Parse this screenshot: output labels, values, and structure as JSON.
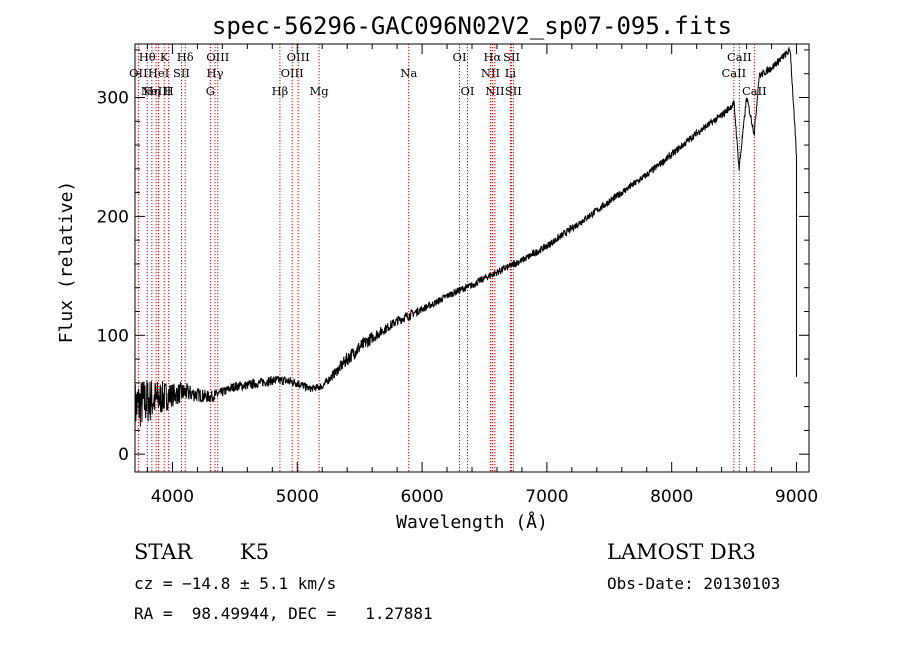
{
  "chart_data": {
    "type": "line",
    "title": "spec-56296-GAC096N02V2_sp07-095.fits",
    "xlabel": "Wavelength (Å)",
    "ylabel": "Flux (relative)",
    "xlim": [
      3700,
      9100
    ],
    "ylim": [
      -15,
      345
    ],
    "xticks": [
      4000,
      5000,
      6000,
      7000,
      8000,
      9000
    ],
    "yticks": [
      0,
      100,
      200,
      300
    ],
    "minor_xtick_step": 200,
    "minor_ytick_step": 20,
    "series": [
      {
        "name": "flux",
        "color": "#000000",
        "x": [
          3700,
          3800,
          3900,
          4000,
          4100,
          4200,
          4300,
          4400,
          4500,
          4600,
          4700,
          4800,
          4900,
          5000,
          5100,
          5200,
          5300,
          5400,
          5500,
          5600,
          5700,
          5800,
          5900,
          6000,
          6100,
          6200,
          6300,
          6400,
          6500,
          6600,
          6700,
          6800,
          7000,
          7200,
          7400,
          7600,
          7800,
          8000,
          8200,
          8400,
          8500,
          8540,
          8600,
          8662,
          8700,
          8800,
          8900,
          8950,
          9000
        ],
        "y": [
          40,
          45,
          47,
          50,
          52,
          50,
          48,
          52,
          57,
          58,
          60,
          62,
          62,
          60,
          55,
          57,
          68,
          80,
          90,
          98,
          105,
          112,
          117,
          122,
          127,
          133,
          138,
          142,
          148,
          153,
          158,
          163,
          175,
          190,
          205,
          220,
          235,
          252,
          270,
          285,
          295,
          240,
          300,
          270,
          318,
          325,
          335,
          340,
          250
        ],
        "noise": [
          22,
          20,
          15,
          10,
          8,
          6,
          5,
          4,
          4,
          4,
          4,
          4,
          4,
          4,
          3,
          3,
          4,
          6,
          6,
          5,
          4,
          4,
          4,
          3,
          3,
          3,
          3,
          3,
          3,
          3,
          3,
          3,
          3,
          3,
          3,
          3,
          3,
          3,
          3,
          3,
          3,
          3,
          3,
          3,
          3,
          3,
          3,
          3,
          3
        ]
      }
    ],
    "line_color": "#cc0000",
    "lines": [
      {
        "wavelength": 3727,
        "label": "OII",
        "row": 2
      },
      {
        "wavelength": 3798,
        "label": "Hθ",
        "row": 1
      },
      {
        "wavelength": 3835,
        "label": "Hη",
        "row": 3
      },
      {
        "wavelength": 3869,
        "label": "NeIII",
        "row": 3
      },
      {
        "wavelength": 3889,
        "label": "HeI",
        "row": 2
      },
      {
        "wavelength": 3934,
        "label": "K",
        "row": 1
      },
      {
        "wavelength": 3970,
        "label": "H",
        "row": 3
      },
      {
        "wavelength": 4072,
        "label": "SII",
        "row": 2
      },
      {
        "wavelength": 4102,
        "label": "Hδ",
        "row": 1
      },
      {
        "wavelength": 4304,
        "label": "G",
        "row": 3
      },
      {
        "wavelength": 4341,
        "label": "Hγ",
        "row": 2
      },
      {
        "wavelength": 4363,
        "label": "OIII",
        "row": 1
      },
      {
        "wavelength": 4861,
        "label": "Hβ",
        "row": 3
      },
      {
        "wavelength": 4959,
        "label": "OIII",
        "row": 2
      },
      {
        "wavelength": 5007,
        "label": "OIII",
        "row": 1
      },
      {
        "wavelength": 5175,
        "label": "Mg",
        "row": 3
      },
      {
        "wavelength": 5893,
        "label": "Na",
        "row": 2
      },
      {
        "wavelength": 6300,
        "label": "OI",
        "row": 1
      },
      {
        "wavelength": 6364,
        "label": "OI",
        "row": 3
      },
      {
        "wavelength": 6548,
        "label": "NII",
        "row": 2
      },
      {
        "wavelength": 6563,
        "label": "Hα",
        "row": 1
      },
      {
        "wavelength": 6584,
        "label": "NII",
        "row": 3
      },
      {
        "wavelength": 6708,
        "label": "Li",
        "row": 2
      },
      {
        "wavelength": 6717,
        "label": "SII",
        "row": 1
      },
      {
        "wavelength": 6731,
        "label": "SII",
        "row": 3
      },
      {
        "wavelength": 8498,
        "label": "CaII",
        "row": 2
      },
      {
        "wavelength": 8542,
        "label": "CaII",
        "row": 1
      },
      {
        "wavelength": 8662,
        "label": "CaII",
        "row": 3
      }
    ]
  },
  "info": {
    "class": "STAR",
    "subclass": "K5",
    "survey": "LAMOST DR3",
    "cz": "cz = −14.8 ± 5.1 km/s",
    "obs_date": "Obs-Date: 20130103",
    "coords": "RA =  98.49944, DEC =   1.27881"
  }
}
